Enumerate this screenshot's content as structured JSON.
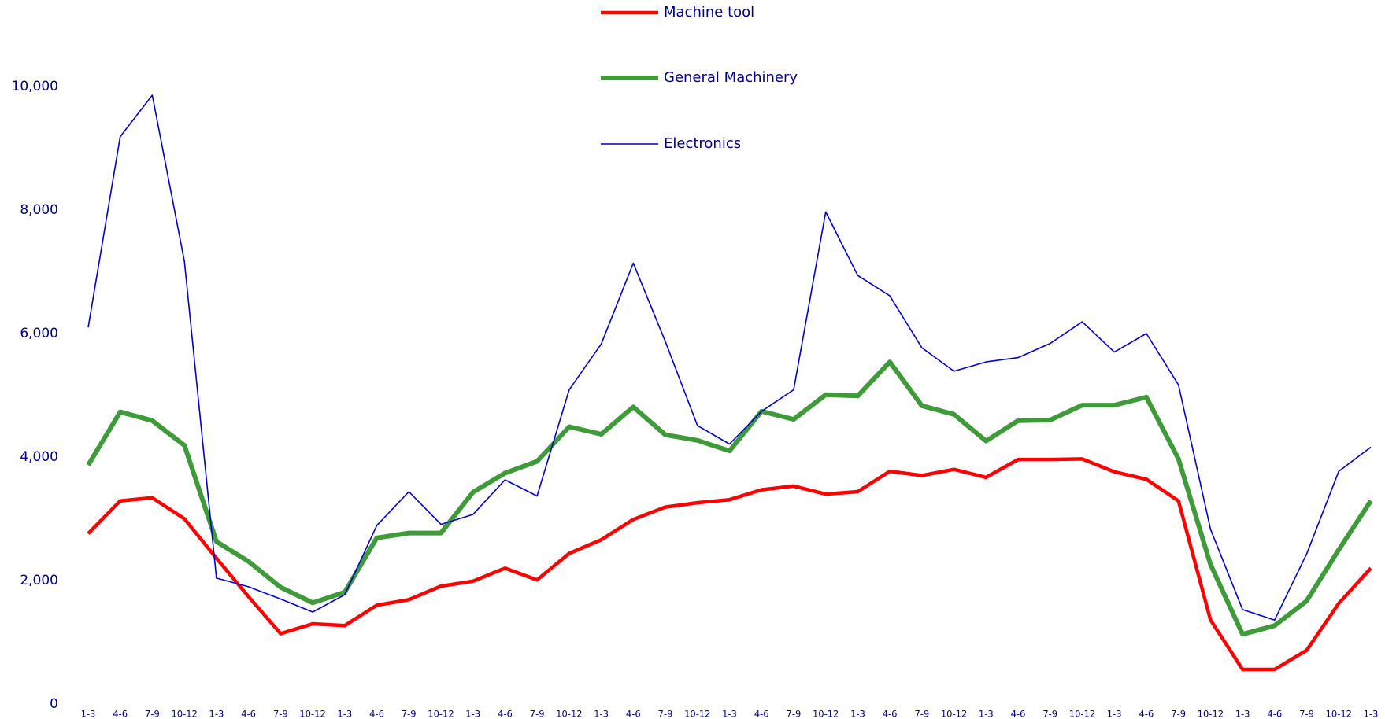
{
  "chart_data": {
    "type": "line",
    "categories": [
      "1-3",
      "4-6",
      "7-9",
      "10-12",
      "1-3",
      "4-6",
      "7-9",
      "10-12",
      "1-3",
      "4-6",
      "7-9",
      "10-12",
      "1-3",
      "4-6",
      "7-9",
      "10-12",
      "1-3",
      "4-6",
      "7-9",
      "10-12",
      "1-3",
      "4-6",
      "7-9",
      "10-12",
      "1-3",
      "4-6",
      "7-9",
      "10-12",
      "1-3",
      "4-6",
      "7-9",
      "10-12",
      "1-3",
      "4-6",
      "7-9",
      "10-12",
      "1-3",
      "4-6",
      "7-9",
      "10-12",
      "1-3"
    ],
    "series": [
      {
        "name": "Machine tool",
        "color": "#ff0000",
        "width": 4.5,
        "values": [
          2760,
          3290,
          3340,
          3000,
          2360,
          1740,
          1140,
          1300,
          1270,
          1600,
          1690,
          1910,
          1990,
          2200,
          2010,
          2440,
          2660,
          2990,
          3190,
          3260,
          3310,
          3470,
          3530,
          3400,
          3440,
          3770,
          3700,
          3800,
          3670,
          3960,
          3960,
          3970,
          3760,
          3640,
          3290,
          1360,
          560,
          560,
          870,
          1630,
          2200
        ]
      },
      {
        "name": "General Machinery",
        "color": "#3f9a3a",
        "width": 6,
        "values": [
          3870,
          4730,
          4590,
          4190,
          2630,
          2310,
          1890,
          1640,
          1810,
          2690,
          2770,
          2770,
          3430,
          3740,
          3930,
          4490,
          4370,
          4810,
          4360,
          4270,
          4100,
          4740,
          4610,
          5010,
          4990,
          5540,
          4830,
          4690,
          4260,
          4590,
          4600,
          4840,
          4840,
          4970,
          3970,
          2260,
          1130,
          1270,
          1670,
          2500,
          3290
        ]
      },
      {
        "name": "Electronics",
        "color": "#0000cc",
        "width": 1.6,
        "values": [
          6100,
          9190,
          9860,
          7170,
          2040,
          1900,
          1700,
          1490,
          1770,
          2890,
          3440,
          2910,
          3070,
          3630,
          3370,
          5090,
          5830,
          7140,
          5870,
          4510,
          4210,
          4740,
          5090,
          7970,
          6940,
          6610,
          5770,
          5390,
          5540,
          5610,
          5840,
          6190,
          5700,
          6000,
          5170,
          2830,
          1530,
          1360,
          2430,
          3770,
          4160
        ]
      }
    ],
    "ylim": [
      0,
      10000
    ],
    "yticks": [
      0,
      {
        "value": 2000,
        "label": "2,000"
      },
      {
        "value": 4000,
        "label": "4,000"
      },
      {
        "value": 6000,
        "label": "6,000"
      },
      {
        "value": 8000,
        "label": "8,000"
      },
      {
        "value": 10000,
        "label": "10,000"
      }
    ],
    "legend": "top",
    "grid": false
  }
}
